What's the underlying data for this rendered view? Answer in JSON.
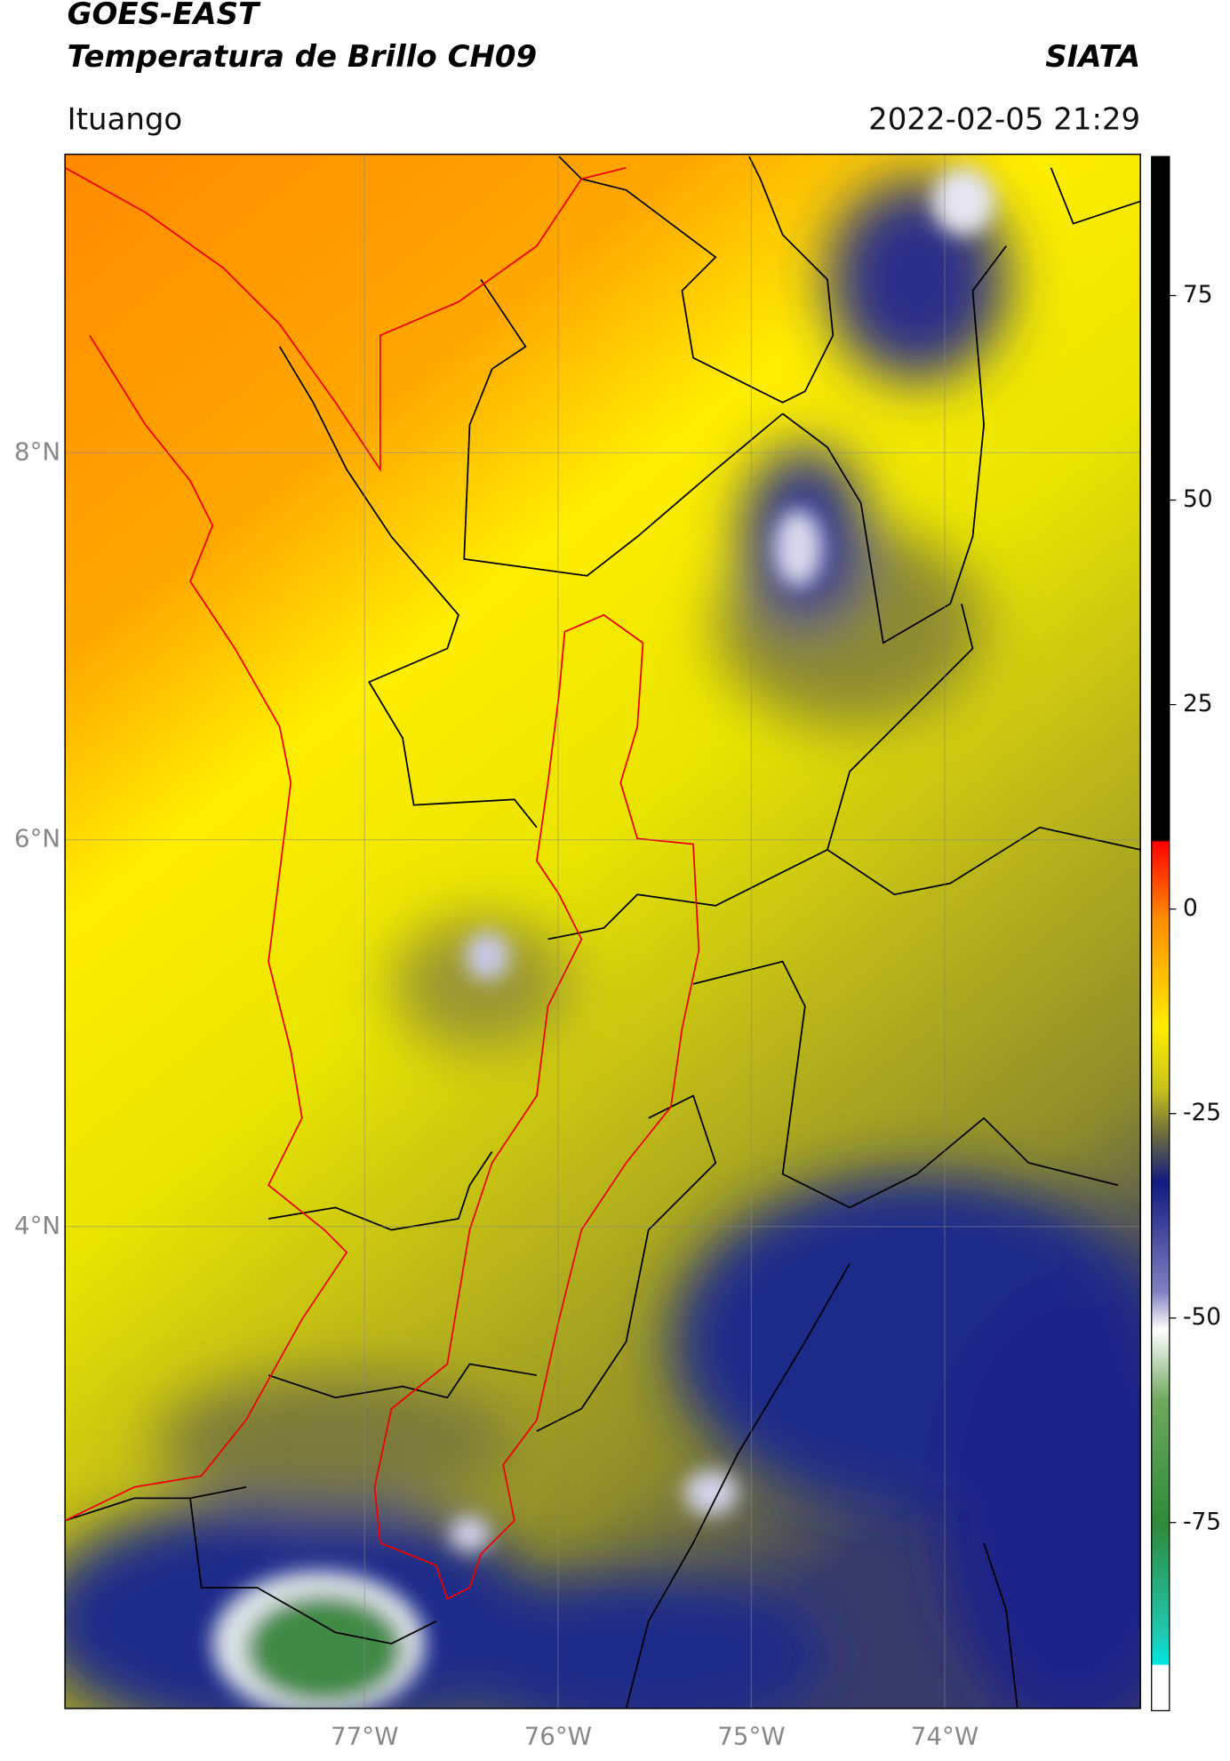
{
  "header": {
    "title_line1": "GOES-EAST",
    "title_line2": "Temperatura de Brillo CH09",
    "source": "SIATA",
    "location": "Ituango",
    "datetime": "2022-02-05 21:29"
  },
  "map": {
    "lat_ticks": [
      {
        "value": 8,
        "label": "8°N"
      },
      {
        "value": 6,
        "label": "6°N"
      },
      {
        "value": 4,
        "label": "4°N"
      }
    ],
    "lon_ticks": [
      {
        "value": -77,
        "label": "77°W"
      },
      {
        "value": -76,
        "label": "76°W"
      },
      {
        "value": -75,
        "label": "75°W"
      },
      {
        "value": -74,
        "label": "74°W"
      }
    ]
  },
  "colorbar": {
    "lim": [
      -98,
      92
    ],
    "ticks": [
      75,
      50,
      25,
      0,
      -25,
      -50,
      -75
    ]
  }
}
